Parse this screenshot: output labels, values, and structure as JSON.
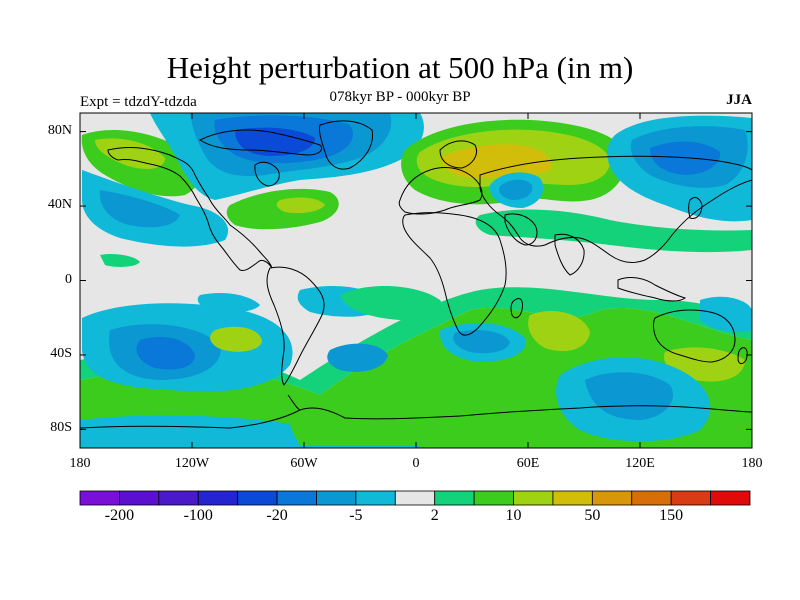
{
  "title": "Height perturbation at 500 hPa (in m)",
  "experiment": "Expt = tdzdY-tdzda",
  "period": "078kyr BP - 000kyr BP",
  "season": "JJA",
  "lat_ticks": [
    {
      "label": "80N",
      "lat": 80
    },
    {
      "label": "40N",
      "lat": 40
    },
    {
      "label": "0",
      "lat": 0
    },
    {
      "label": "40S",
      "lat": -40
    },
    {
      "label": "80S",
      "lat": -80
    }
  ],
  "lon_ticks": [
    {
      "label": "180",
      "lon": -180
    },
    {
      "label": "120W",
      "lon": -120
    },
    {
      "label": "60W",
      "lon": -60
    },
    {
      "label": "0",
      "lon": 0
    },
    {
      "label": "60E",
      "lon": 60
    },
    {
      "label": "120E",
      "lon": 120
    },
    {
      "label": "180",
      "lon": 180
    }
  ],
  "colorbar": {
    "colors": [
      "#7a0fd8",
      "#5b10d0",
      "#4a1ac8",
      "#2424d0",
      "#0a4ad6",
      "#0a78d8",
      "#0b98d2",
      "#10b9d8",
      "#e6e6e6",
      "#14d27a",
      "#3ccc1e",
      "#a0d214",
      "#d2be0a",
      "#d8960a",
      "#d86e0a",
      "#d83c14",
      "#e00a0a"
    ],
    "labels": [
      {
        "text": "-200",
        "boundary": 1
      },
      {
        "text": "-100",
        "boundary": 3
      },
      {
        "text": "-20",
        "boundary": 5
      },
      {
        "text": "-5",
        "boundary": 7
      },
      {
        "text": "2",
        "boundary": 9
      },
      {
        "text": "10",
        "boundary": 11
      },
      {
        "text": "50",
        "boundary": 13
      },
      {
        "text": "150",
        "boundary": 15
      }
    ]
  },
  "map_colors": {
    "background": "#e6e6e6",
    "neg_weak": "#10b9d8",
    "neg_mid": "#0b98d2",
    "neg_strong": "#0a78d8",
    "neg_deep": "#0a4ad6",
    "pos_weak": "#14d27a",
    "pos_mid": "#3ccc1e",
    "pos_strong": "#a0d214",
    "pos_deep": "#d2be0a",
    "pos_peak": "#d8960a",
    "coastline": "#000000"
  }
}
